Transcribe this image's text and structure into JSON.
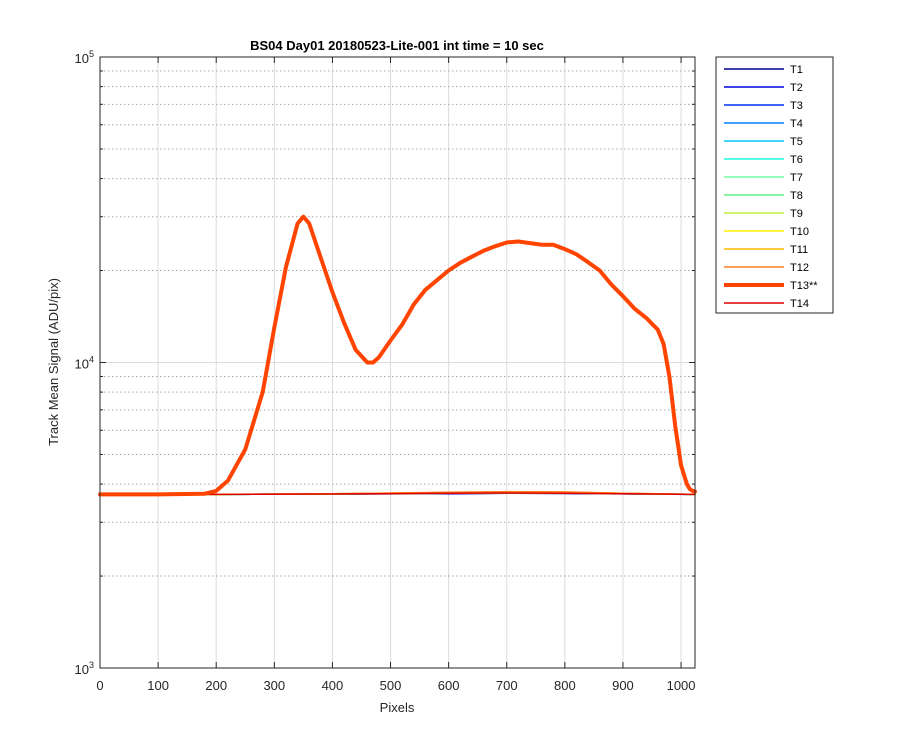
{
  "chart_data": {
    "type": "line",
    "title": "BS04 Day01 20180523-Lite-001 int time = 10 sec",
    "xlabel": "Pixels",
    "ylabel": "Track Mean Signal (ADU/pix)",
    "xlim": [
      0,
      1024
    ],
    "ylim": [
      1000,
      100000
    ],
    "yscale": "log",
    "grid": true,
    "minor_grid": true,
    "legend_position": "outside-top-right",
    "x_ticks": [
      0,
      100,
      200,
      300,
      400,
      500,
      600,
      700,
      800,
      900,
      1000
    ],
    "x_tick_labels": [
      "0",
      "100",
      "200",
      "300",
      "400",
      "500",
      "600",
      "700",
      "800",
      "900",
      "1000"
    ],
    "y_ticks": [
      {
        "value": 1000,
        "base": "10",
        "exp": "3"
      },
      {
        "value": 10000,
        "base": "10",
        "exp": "4"
      },
      {
        "value": 100000,
        "base": "10",
        "exp": "5"
      }
    ],
    "series": [
      {
        "name": "T1",
        "color": "#00008f",
        "width": 1.5,
        "x": [
          0,
          200,
          400,
          600,
          700,
          800,
          900,
          1024
        ],
        "y": [
          3700,
          3700,
          3710,
          3720,
          3730,
          3725,
          3715,
          3700
        ]
      },
      {
        "name": "T2",
        "color": "#0000df",
        "width": 1.5,
        "x": [
          0,
          200,
          400,
          600,
          700,
          800,
          900,
          1024
        ],
        "y": [
          3700,
          3700,
          3712,
          3725,
          3735,
          3730,
          3718,
          3700
        ]
      },
      {
        "name": "T3",
        "color": "#0030ff",
        "width": 1.5,
        "x": [
          0,
          200,
          400,
          600,
          700,
          800,
          900,
          1024
        ],
        "y": [
          3700,
          3700,
          3715,
          3730,
          3740,
          3735,
          3720,
          3700
        ]
      },
      {
        "name": "T4",
        "color": "#0080ff",
        "width": 1.5,
        "x": [
          0,
          200,
          400,
          600,
          700,
          800,
          900,
          1024
        ],
        "y": [
          3700,
          3700,
          3715,
          3735,
          3745,
          3740,
          3722,
          3700
        ]
      },
      {
        "name": "T5",
        "color": "#00c8ff",
        "width": 1.5,
        "x": [
          0,
          200,
          400,
          600,
          700,
          800,
          900,
          1024
        ],
        "y": [
          3700,
          3700,
          3716,
          3738,
          3750,
          3745,
          3725,
          3700
        ]
      },
      {
        "name": "T6",
        "color": "#20ffdf",
        "width": 1.5,
        "x": [
          0,
          200,
          400,
          600,
          700,
          800,
          900,
          1024
        ],
        "y": [
          3700,
          3700,
          3716,
          3738,
          3750,
          3745,
          3725,
          3700
        ]
      },
      {
        "name": "T7",
        "color": "#70ffa0",
        "width": 1.5,
        "x": [
          0,
          200,
          400,
          600,
          700,
          800,
          900,
          1024
        ],
        "y": [
          3700,
          3700,
          3714,
          3735,
          3745,
          3740,
          3722,
          3700
        ]
      },
      {
        "name": "T8",
        "color": "#60f080",
        "width": 1.5,
        "x": [
          0,
          200,
          400,
          600,
          700,
          800,
          900,
          1024
        ],
        "y": [
          3700,
          3700,
          3712,
          3730,
          3740,
          3736,
          3720,
          3700
        ]
      },
      {
        "name": "T9",
        "color": "#c0f040",
        "width": 1.5,
        "x": [
          0,
          200,
          400,
          600,
          700,
          800,
          900,
          1024
        ],
        "y": [
          3700,
          3700,
          3712,
          3732,
          3742,
          3738,
          3720,
          3700
        ]
      },
      {
        "name": "T10",
        "color": "#ffee00",
        "width": 1.5,
        "x": [
          0,
          200,
          400,
          600,
          700,
          800,
          900,
          1024
        ],
        "y": [
          3700,
          3700,
          3715,
          3740,
          3755,
          3750,
          3726,
          3700
        ]
      },
      {
        "name": "T11",
        "color": "#ffb800",
        "width": 1.5,
        "x": [
          0,
          200,
          400,
          600,
          700,
          800,
          900,
          1024
        ],
        "y": [
          3700,
          3700,
          3718,
          3750,
          3765,
          3760,
          3730,
          3700
        ]
      },
      {
        "name": "T12",
        "color": "#ff8020",
        "width": 1.5,
        "x": [
          0,
          200,
          400,
          600,
          700,
          800,
          900,
          1024
        ],
        "y": [
          3700,
          3700,
          3720,
          3760,
          3780,
          3770,
          3735,
          3700
        ]
      },
      {
        "name": "T13**",
        "color": "#ff4400",
        "width": 4,
        "x": [
          0,
          100,
          180,
          200,
          220,
          250,
          280,
          300,
          320,
          340,
          350,
          360,
          380,
          400,
          420,
          440,
          460,
          470,
          480,
          500,
          520,
          540,
          560,
          580,
          600,
          620,
          640,
          660,
          680,
          700,
          720,
          740,
          760,
          780,
          800,
          820,
          840,
          860,
          880,
          900,
          920,
          940,
          960,
          970,
          980,
          990,
          1000,
          1010,
          1015,
          1020,
          1024
        ],
        "y": [
          3700,
          3700,
          3720,
          3800,
          4100,
          5200,
          8000,
          13000,
          20500,
          28500,
          30000,
          28500,
          22000,
          17000,
          13500,
          11000,
          10000,
          10000,
          10400,
          11800,
          13300,
          15500,
          17300,
          18600,
          20000,
          21200,
          22200,
          23200,
          24000,
          24700,
          24900,
          24600,
          24300,
          24300,
          23500,
          22600,
          21300,
          20000,
          18000,
          16500,
          15000,
          14000,
          12800,
          11500,
          9000,
          6200,
          4600,
          4000,
          3850,
          3800,
          3780
        ]
      },
      {
        "name": "T14",
        "color": "#e00000",
        "width": 1.5,
        "x": [
          0,
          200,
          400,
          600,
          700,
          800,
          900,
          1024
        ],
        "y": [
          3700,
          3700,
          3712,
          3730,
          3740,
          3735,
          3720,
          3700
        ]
      }
    ]
  }
}
